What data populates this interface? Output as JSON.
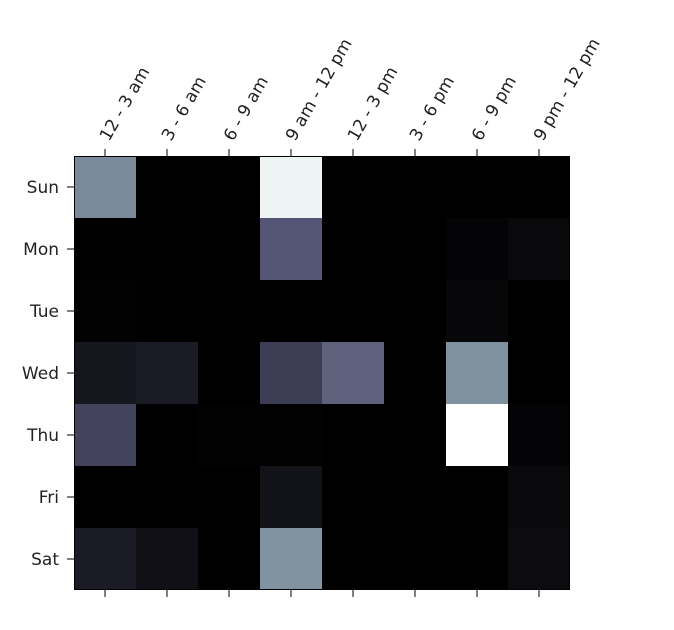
{
  "chart_data": {
    "type": "heatmap",
    "x_categories": [
      "12 - 3 am",
      "3 - 6 am",
      "6 - 9 am",
      "9 am - 12 pm",
      "12 - 3 pm",
      "3 - 6 pm",
      "6 - 9 pm",
      "9 pm - 12 pm"
    ],
    "y_categories": [
      "Sun",
      "Mon",
      "Tue",
      "Wed",
      "Thu",
      "Fri",
      "Sat"
    ],
    "values": [
      [
        0.55,
        0.0,
        0.0,
        0.95,
        0.0,
        0.0,
        0.0,
        0.0
      ],
      [
        0.0,
        0.0,
        0.0,
        0.38,
        0.0,
        0.0,
        0.02,
        0.04
      ],
      [
        0.01,
        0.0,
        0.0,
        0.0,
        0.0,
        0.0,
        0.03,
        0.0
      ],
      [
        0.1,
        0.12,
        0.0,
        0.27,
        0.42,
        0.0,
        0.57,
        0.0
      ],
      [
        0.3,
        0.0,
        0.01,
        0.01,
        0.0,
        0.0,
        1.0,
        0.02
      ],
      [
        0.0,
        0.0,
        0.0,
        0.08,
        0.0,
        0.0,
        0.0,
        0.04
      ],
      [
        0.12,
        0.07,
        0.0,
        0.58,
        0.0,
        0.0,
        0.0,
        0.05
      ]
    ],
    "vmin": 0,
    "vmax": 1,
    "colormap": "bone",
    "x_tick_position": "top",
    "title": "",
    "xlabel": "",
    "ylabel": "",
    "grid": false,
    "colorbar": false
  }
}
